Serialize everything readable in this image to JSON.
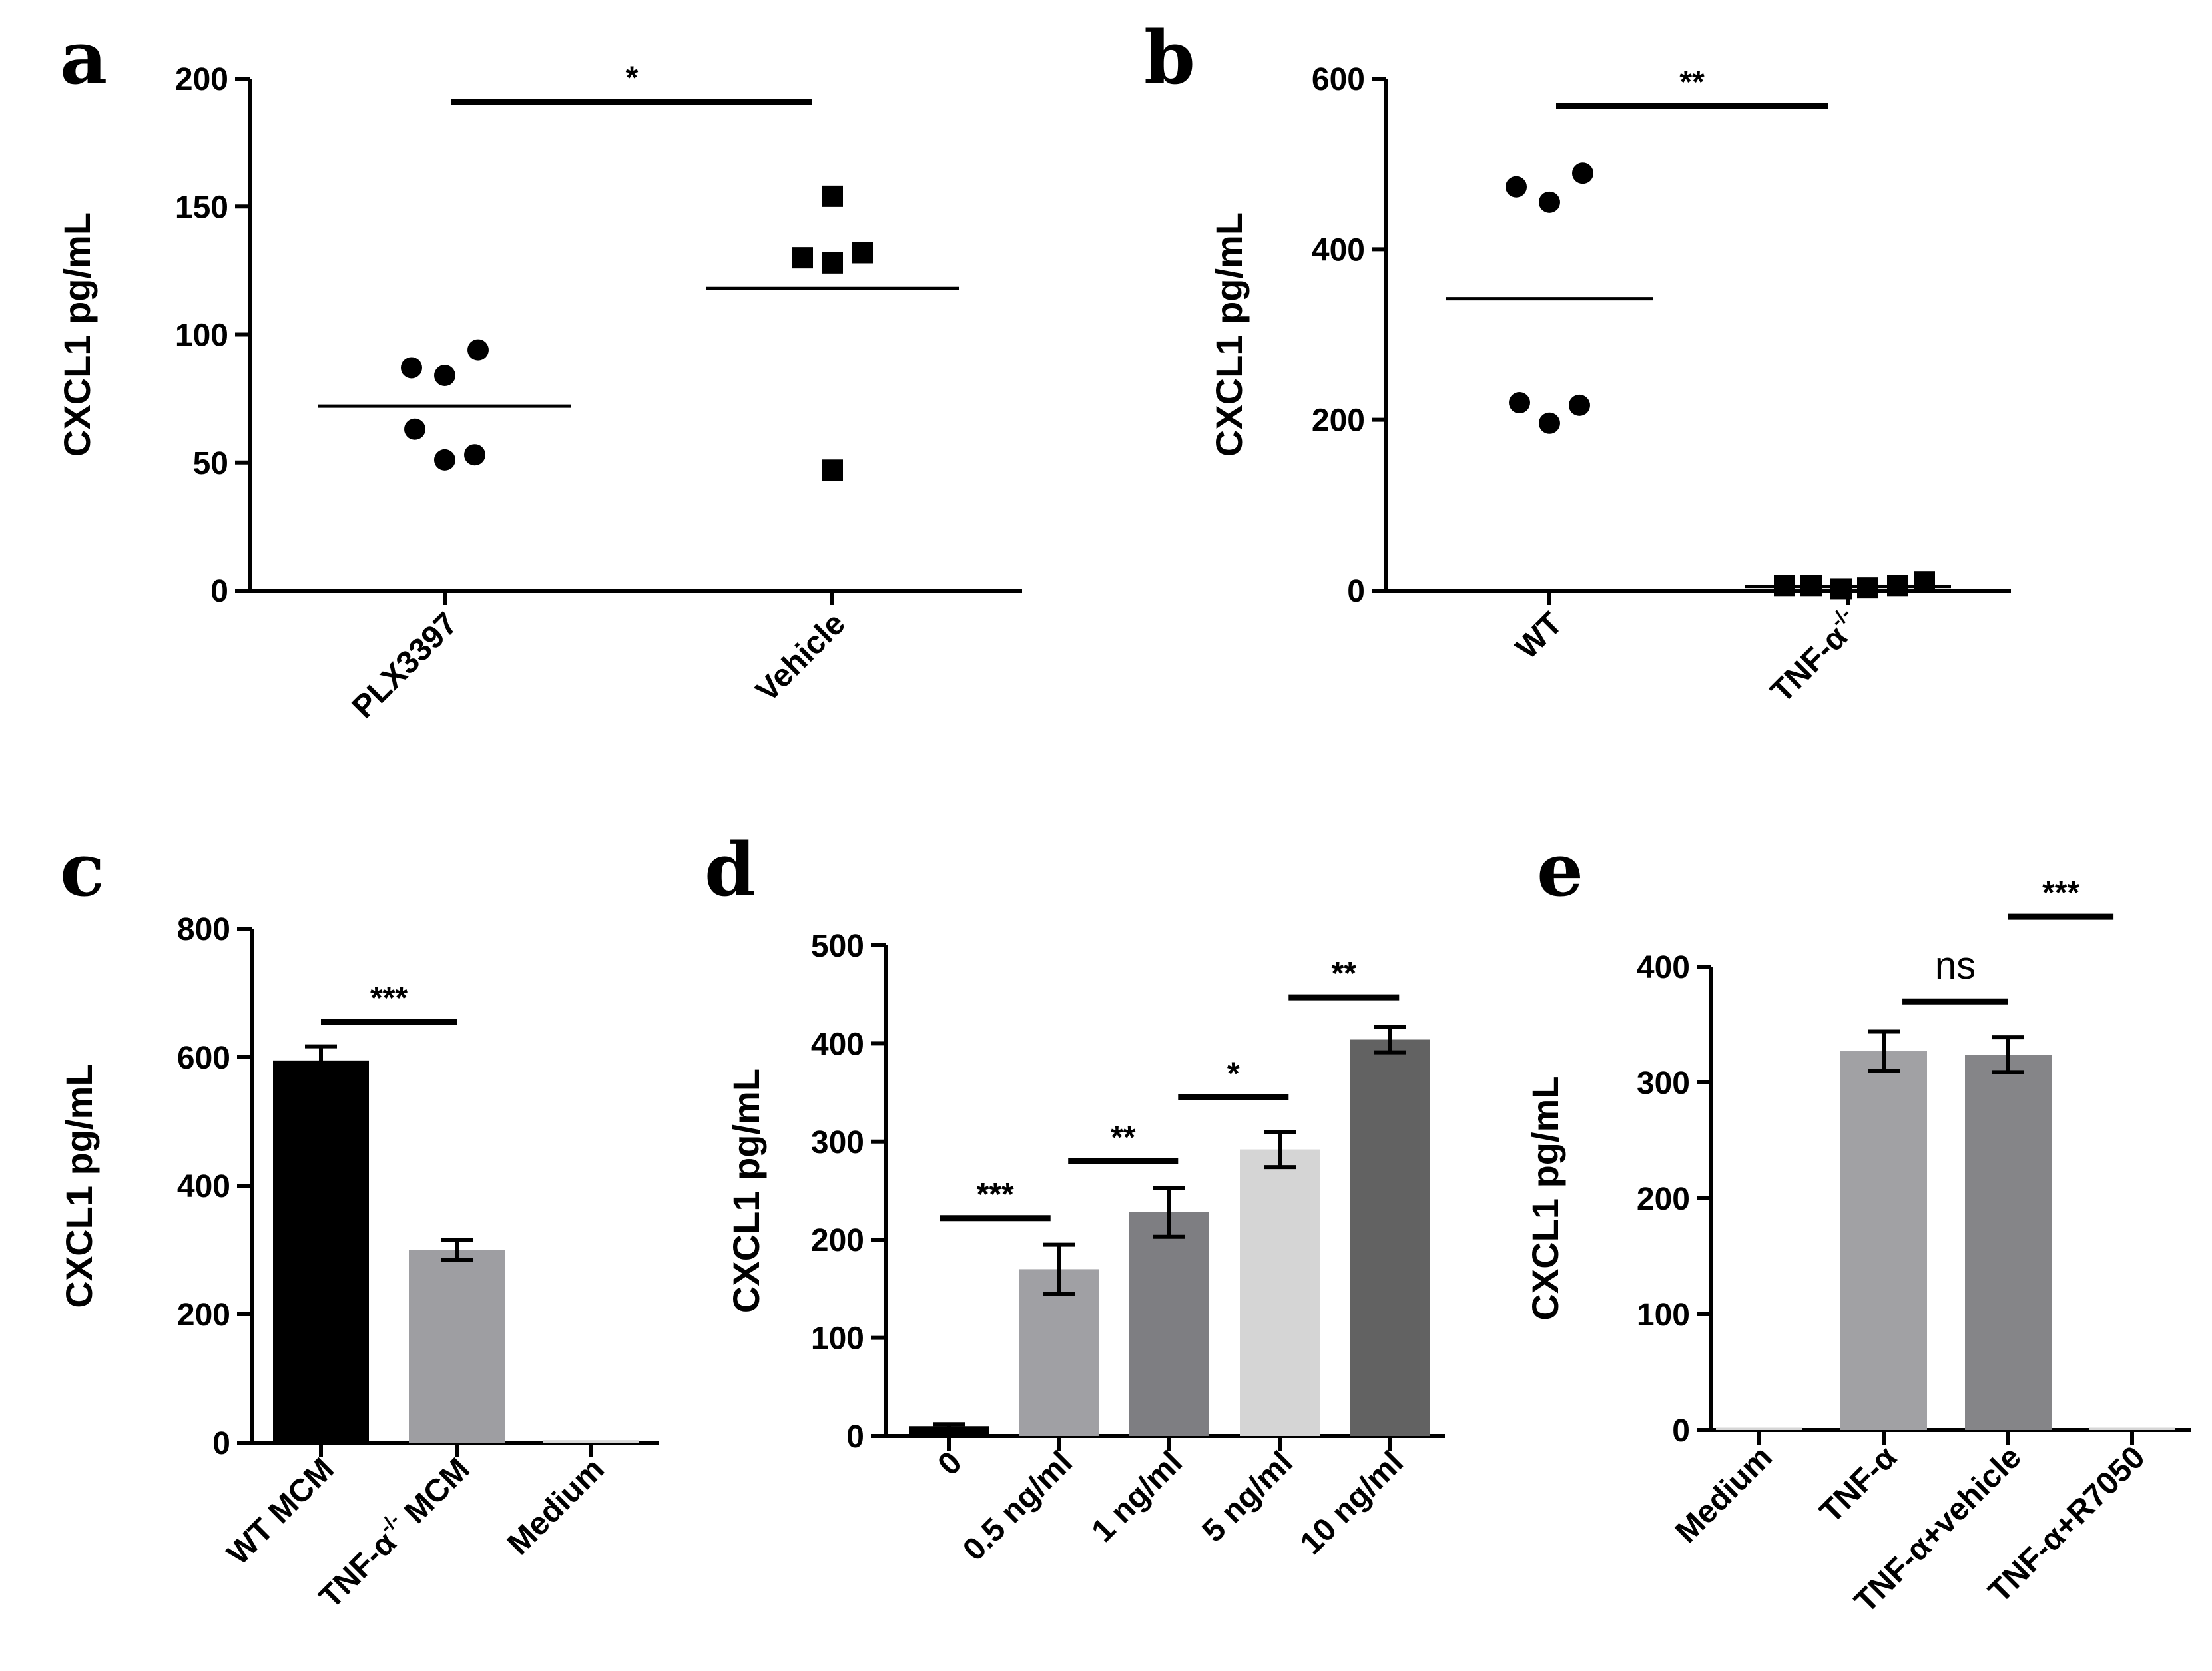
{
  "chart_data": [
    {
      "panel": "a",
      "type": "scatter",
      "ylabel": "CXCL1 pg/mL",
      "ylim": [
        0,
        200
      ],
      "yticks": [
        0,
        50,
        100,
        150,
        200
      ],
      "categories": [
        "PLX3397",
        "Vehicle"
      ],
      "series": [
        {
          "name": "PLX3397",
          "marker": "circle",
          "values": [
            87,
            84,
            94,
            63,
            51,
            53
          ],
          "mean": 72
        },
        {
          "name": "Vehicle",
          "marker": "square",
          "values": [
            154,
            130,
            128,
            132,
            47
          ],
          "mean": 118
        }
      ],
      "significance": [
        {
          "from": 0,
          "to": 1,
          "label": "*",
          "y": 191
        }
      ]
    },
    {
      "panel": "b",
      "type": "scatter",
      "ylabel": "CXCL1 pg/mL",
      "ylim": [
        0,
        600
      ],
      "yticks": [
        0,
        200,
        400,
        600
      ],
      "categories": [
        "WT",
        "TNF-α"
      ],
      "category_superscripts": [
        "",
        "-/-"
      ],
      "series": [
        {
          "name": "WT",
          "marker": "circle",
          "values": [
            473,
            455,
            489,
            220,
            196,
            217
          ],
          "mean": 342
        },
        {
          "name": "TNF-α-/-",
          "marker": "square",
          "values": [
            6,
            6,
            2,
            3,
            6,
            10
          ],
          "mean": 5
        }
      ],
      "significance": [
        {
          "from": 0,
          "to": 1,
          "label": "**",
          "y": 568
        }
      ]
    },
    {
      "panel": "c",
      "type": "bar",
      "ylabel": "CXCL1 pg/mL",
      "ylim": [
        0,
        800
      ],
      "yticks": [
        0,
        200,
        400,
        600,
        800
      ],
      "categories": [
        "WT MCM",
        "TNF-α",
        "Medium"
      ],
      "category_superscripts": [
        "",
        "-/-",
        ""
      ],
      "category_suffixes": [
        "",
        " MCM",
        ""
      ],
      "values": [
        595,
        300,
        4
      ],
      "errors": [
        22,
        16,
        0
      ],
      "colors": [
        "#000000",
        "#9e9ea2",
        "#d6d6d6"
      ],
      "significance": [
        {
          "from": 0,
          "to": 1,
          "label": "***",
          "y": 655
        }
      ]
    },
    {
      "panel": "d",
      "type": "bar",
      "ylabel": "CXCL1 pg/mL",
      "ylim": [
        0,
        500
      ],
      "yticks": [
        0,
        100,
        200,
        300,
        400,
        500
      ],
      "categories": [
        "0",
        "0.5 ng/ml",
        "1 ng/ml",
        "5 ng/ml",
        "10 ng/ml"
      ],
      "values": [
        10,
        170,
        228,
        292,
        404
      ],
      "errors": [
        2,
        25,
        25,
        18,
        13
      ],
      "colors": [
        "#000000",
        "#a0a0a4",
        "#7e7e82",
        "#d5d5d5",
        "#626262"
      ],
      "significance": [
        {
          "from": -0.08,
          "to": 0.92,
          "label": "***",
          "y": 222
        },
        {
          "from": 1.08,
          "to": 2.08,
          "label": "**",
          "y": 280
        },
        {
          "from": 2.08,
          "to": 3.08,
          "label": "*",
          "y": 345
        },
        {
          "from": 3.08,
          "to": 4.08,
          "label": "**",
          "y": 447
        }
      ]
    },
    {
      "panel": "e",
      "type": "bar",
      "ylabel": "CXCL1 pg/mL",
      "ylim": [
        0,
        400
      ],
      "yticks": [
        0,
        100,
        200,
        300,
        400
      ],
      "categories": [
        "Medium",
        "TNF-α",
        "TNF-α+vehicle",
        "TNF-α+R7050"
      ],
      "values": [
        2,
        327,
        324,
        2
      ],
      "errors": [
        0,
        17,
        15,
        0
      ],
      "colors": [
        "#d6d6d6",
        "#a1a1a4",
        "#858588",
        "#d6d6d6"
      ],
      "significance": [
        {
          "from": 1.15,
          "to": 2.0,
          "label": "ns",
          "y": 370
        },
        {
          "from": 2.0,
          "to": 2.85,
          "label": "***",
          "y": 443
        }
      ]
    }
  ]
}
